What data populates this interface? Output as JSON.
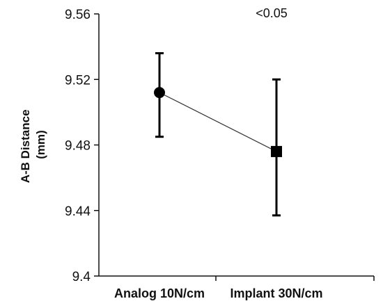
{
  "chart_data": {
    "type": "line",
    "categories": [
      "Analog 10N/cm",
      "Implant 30N/cm"
    ],
    "series": [
      {
        "values": [
          9.512,
          9.476
        ],
        "error_low": [
          9.485,
          9.437
        ],
        "error_high": [
          9.536,
          9.52
        ],
        "markers": [
          "circle",
          "square"
        ]
      }
    ],
    "ylabel": "A-B Distance (mm)",
    "ylabel_lines": [
      "A-B Distance",
      "(mm)"
    ],
    "ylim": [
      9.4,
      9.56
    ],
    "yticks": [
      9.4,
      9.44,
      9.48,
      9.52,
      9.56
    ],
    "ytick_labels": [
      "9.4",
      "9.44",
      "9.48",
      "9.52",
      "9.56"
    ],
    "annotation": "<0.05",
    "grid": false,
    "colors": {
      "axis": "#111111",
      "line": "#333333",
      "marker": "#000000"
    }
  }
}
